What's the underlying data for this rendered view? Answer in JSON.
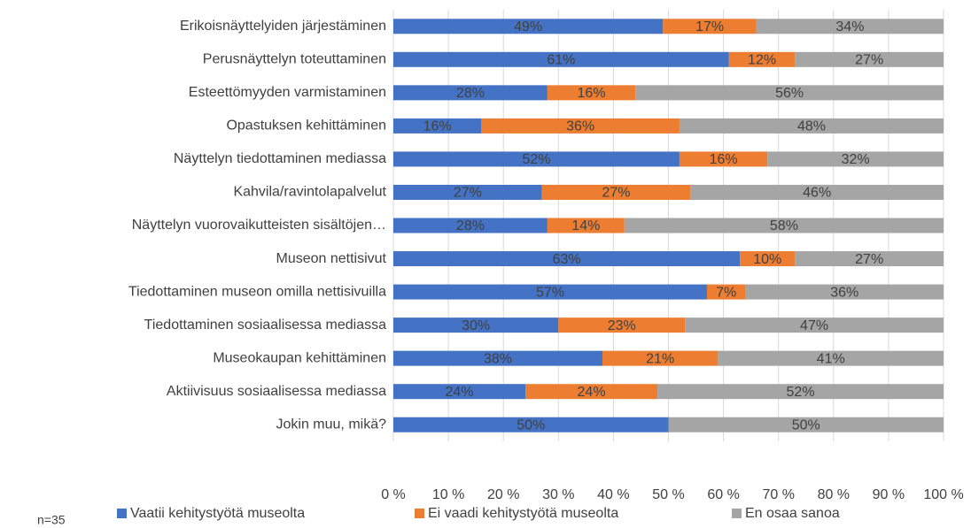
{
  "chart_data": {
    "type": "stacked-barh",
    "categories": [
      "Erikoisnäyttelyiden järjestäminen",
      "Perusnäyttelyn toteuttaminen",
      "Esteettömyyden varmistaminen",
      "Opastuksen kehittäminen",
      "Näyttelyn tiedottaminen mediassa",
      "Kahvila/ravintolapalvelut",
      "Näyttelyn vuorovaikutteisten sisältöjen…",
      "Museon nettisivut",
      "Tiedottaminen museon omilla nettisivuilla",
      "Tiedottaminen sosiaalisessa mediassa",
      "Museokaupan kehittäminen",
      "Aktiivisuus sosiaalisessa mediassa",
      "Jokin muu, mikä?"
    ],
    "series": [
      {
        "name": "Vaatii kehitystyötä museolta",
        "color": "#4472c4",
        "values": [
          49,
          61,
          28,
          16,
          52,
          27,
          28,
          63,
          57,
          30,
          38,
          24,
          50
        ],
        "value_labels": [
          "49%",
          "61%",
          "28%",
          "16%",
          "52%",
          "27%",
          "28%",
          "63%",
          "57%",
          "30%",
          "38%",
          "24%",
          "50%"
        ]
      },
      {
        "name": "Ei vaadi kehitystyötä museolta",
        "color": "#ed7d31",
        "values": [
          17,
          12,
          16,
          36,
          16,
          27,
          14,
          10,
          7,
          23,
          21,
          24,
          0
        ],
        "value_labels": [
          "17%",
          "12%",
          "16%",
          "36%",
          "16%",
          "27%",
          "14%",
          "10%",
          "7%",
          "23%",
          "21%",
          "24%",
          null
        ]
      },
      {
        "name": "En osaa sanoa",
        "color": "#a5a5a5",
        "values": [
          34,
          27,
          56,
          48,
          32,
          46,
          58,
          27,
          36,
          47,
          41,
          52,
          50
        ],
        "value_labels": [
          "34%",
          "27%",
          "56%",
          "48%",
          "32%",
          "46%",
          "58%",
          "27%",
          "36%",
          "47%",
          "41%",
          "52%",
          "50%"
        ]
      }
    ],
    "xlim": [
      0,
      100
    ],
    "xticks": [
      {
        "value": 0,
        "label": "0 %"
      },
      {
        "value": 10,
        "label": "10 %"
      },
      {
        "value": 20,
        "label": "20 %"
      },
      {
        "value": 30,
        "label": "30 %"
      },
      {
        "value": 40,
        "label": "40 %"
      },
      {
        "value": 50,
        "label": "50 %"
      },
      {
        "value": 60,
        "label": "60 %"
      },
      {
        "value": 70,
        "label": "70 %"
      },
      {
        "value": 80,
        "label": "80 %"
      },
      {
        "value": 90,
        "label": "90 %"
      },
      {
        "value": 100,
        "label": "100 %"
      }
    ],
    "grid": true,
    "legend": "bottom",
    "annotation": "n=35"
  }
}
